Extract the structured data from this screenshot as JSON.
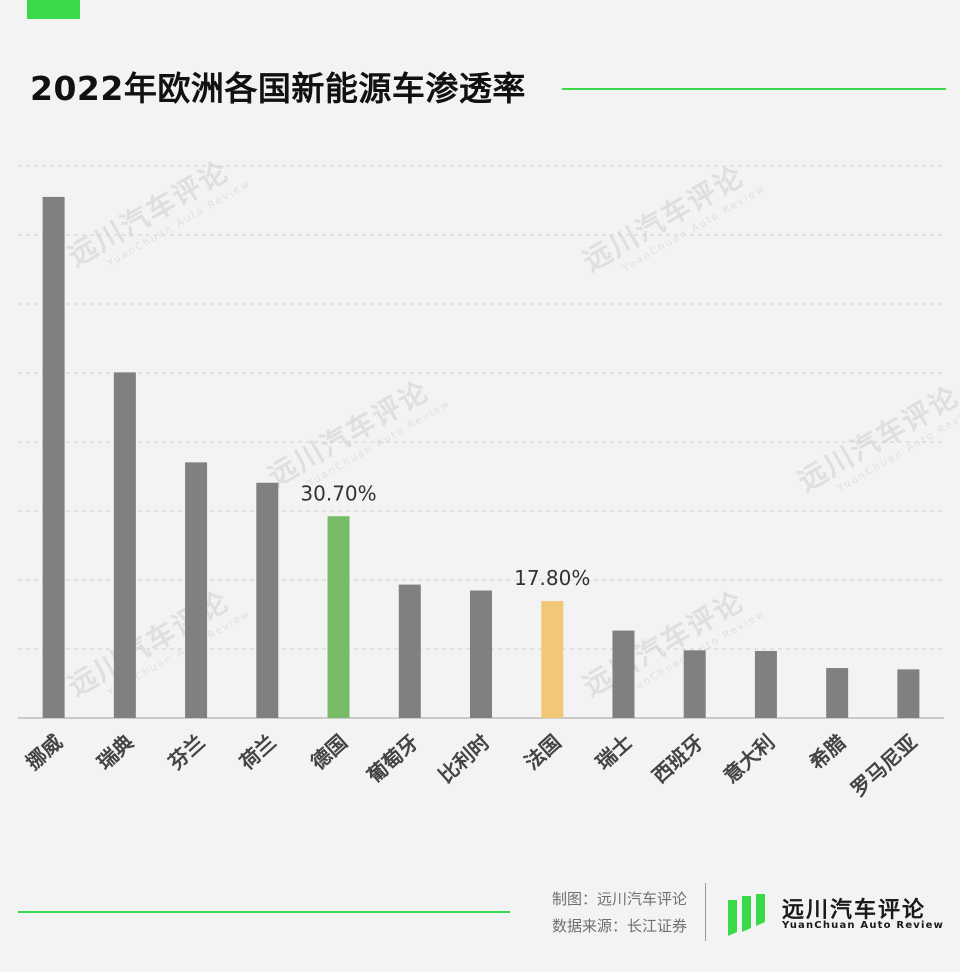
{
  "title": "2022年欧洲各国新能源车渗透率",
  "chart_data": {
    "type": "bar",
    "title": "2022年欧洲各国新能源车渗透率",
    "categories": [
      "挪威",
      "瑞典",
      "芬兰",
      "荷兰",
      "德国",
      "葡萄牙",
      "比利时",
      "法国",
      "瑞士",
      "西班牙",
      "意大利",
      "希腊",
      "罗马尼亚"
    ],
    "values": [
      79.3,
      52.6,
      38.9,
      35.8,
      30.7,
      20.3,
      19.4,
      17.8,
      13.3,
      10.3,
      10.2,
      7.6,
      7.4
    ],
    "ylim": [
      0,
      84
    ],
    "grid": true,
    "data_labels": [
      {
        "category": "德国",
        "text": "30.70%"
      },
      {
        "category": "法国",
        "text": "17.80%"
      }
    ],
    "colors": {
      "default": "#808080",
      "德国": "#77bb66",
      "法国": "#f2c778"
    }
  },
  "footer": {
    "maker": "制图：远川汽车评论",
    "source": "数据来源：长江证券"
  },
  "brand": {
    "name": "远川汽车评论",
    "sub": "YuanChuan  Auto  Review",
    "accent": "#3ad94a"
  },
  "watermark": {
    "text": "远川汽车评论",
    "sub": "YuanChuan  Auto  Review"
  }
}
